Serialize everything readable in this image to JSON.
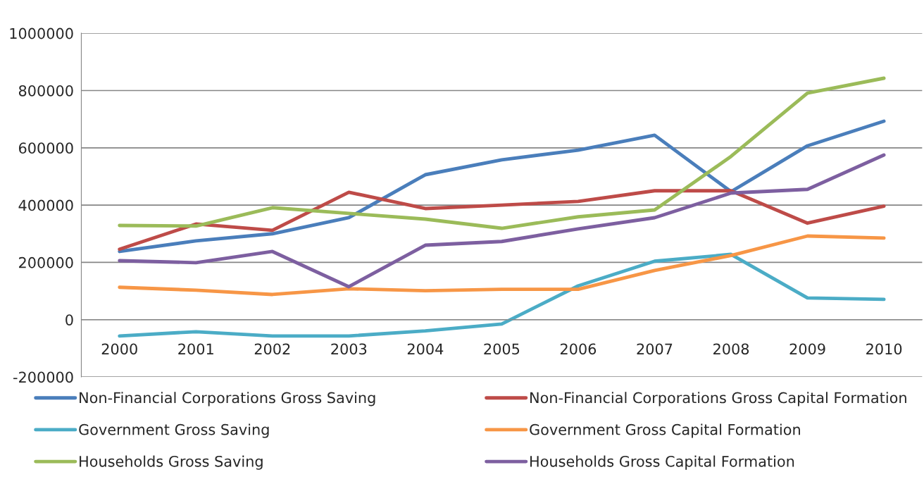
{
  "chart_data": {
    "type": "line",
    "categories": [
      "2000",
      "2001",
      "2002",
      "2003",
      "2004",
      "2005",
      "2006",
      "2007",
      "2008",
      "2009",
      "2010"
    ],
    "series": [
      {
        "name": "Non-Financial Corporations Gross Saving",
        "color": "#4a7ebb",
        "values": [
          238000,
          275000,
          300000,
          356000,
          506000,
          558000,
          592000,
          644000,
          447000,
          607000,
          693000
        ]
      },
      {
        "name": "Non-Financial Corporations Gross Capital Formation",
        "color": "#be4b48",
        "values": [
          246000,
          334000,
          312000,
          445000,
          388000,
          400000,
          413000,
          450000,
          450000,
          337000,
          396000
        ]
      },
      {
        "name": "Government Gross Saving",
        "color": "#4bacc6",
        "values": [
          -57000,
          -42000,
          -57000,
          -57000,
          -39000,
          -15000,
          118000,
          204000,
          228000,
          76000,
          71000
        ]
      },
      {
        "name": "Government Gross Capital Formation",
        "color": "#f79646",
        "values": [
          113000,
          103000,
          88000,
          108000,
          101000,
          106000,
          106000,
          172000,
          224000,
          292000,
          285000
        ]
      },
      {
        "name": "Households Gross Saving",
        "color": "#9bbb59",
        "values": [
          329000,
          327000,
          391000,
          371000,
          351000,
          319000,
          359000,
          383000,
          570000,
          791000,
          843000
        ]
      },
      {
        "name": "Households Gross Capital Formation",
        "color": "#7d5fa0",
        "values": [
          206000,
          199000,
          238000,
          115000,
          260000,
          273000,
          317000,
          356000,
          442000,
          455000,
          575000
        ]
      }
    ],
    "ylim": [
      -200000,
      1000000
    ],
    "yticks": [
      -200000,
      0,
      200000,
      400000,
      600000,
      800000,
      1000000
    ],
    "grid": "y",
    "legend": "bottom",
    "marker": "none",
    "line_style": "solid"
  }
}
